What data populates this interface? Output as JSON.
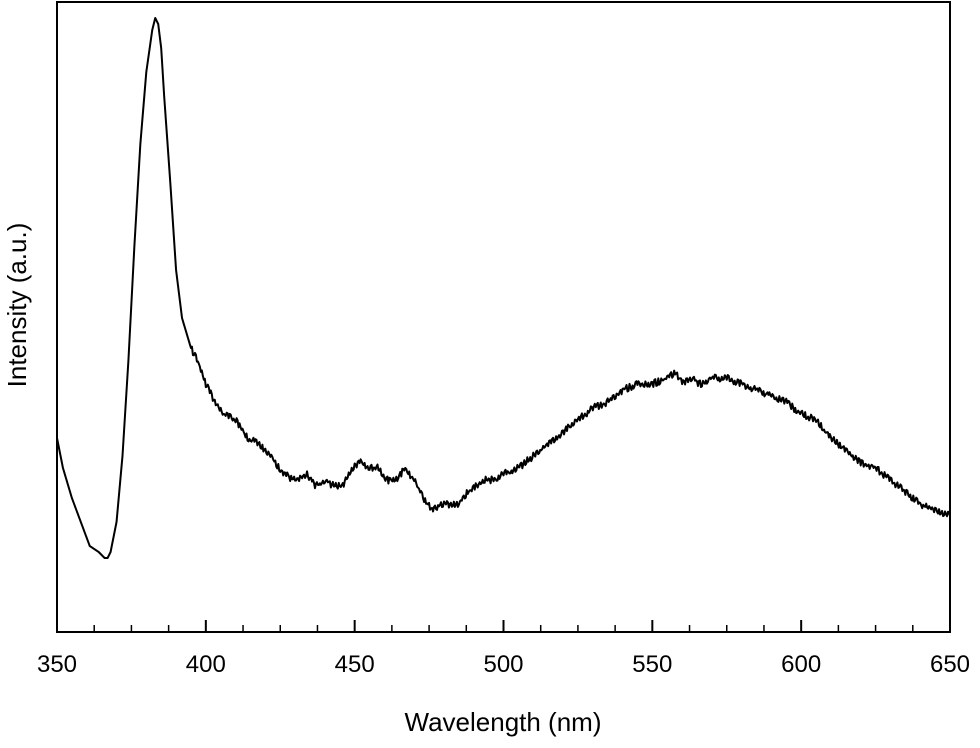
{
  "chart_data": {
    "type": "line",
    "title": "",
    "xlabel": "Wavelength (nm)",
    "ylabel": "Intensity (a.u.)",
    "xlim": [
      350,
      650
    ],
    "ylim": [
      0,
      1.0
    ],
    "x_ticks": [
      "350",
      "400",
      "450",
      "500",
      "550",
      "600",
      "650"
    ],
    "x_tick_values": [
      350,
      400,
      450,
      500,
      550,
      600,
      650
    ],
    "x_minor_step": 12.5,
    "y_tick_labels_shown": false,
    "grid": false,
    "legend": "none",
    "line_color": "#000000",
    "series": [
      {
        "x": [
          350,
          352,
          355,
          358,
          361,
          364,
          366,
          367,
          368,
          370,
          372,
          374,
          376,
          378,
          380,
          382,
          383,
          384,
          385,
          386,
          388,
          390,
          392,
          395,
          398,
          400,
          403,
          406,
          410,
          414,
          418,
          422,
          426,
          430,
          434,
          437,
          440,
          443,
          446,
          449,
          452,
          455,
          458,
          461,
          464,
          467,
          470,
          473,
          476,
          479,
          482,
          485,
          488,
          491,
          494,
          497,
          500,
          505,
          510,
          515,
          520,
          525,
          530,
          535,
          540,
          545,
          550,
          555,
          558,
          560,
          563,
          566,
          570,
          575,
          580,
          585,
          590,
          595,
          600,
          605,
          610,
          615,
          620,
          625,
          630,
          635,
          640,
          645,
          650
        ],
        "y": [
          0.29,
          0.24,
          0.19,
          0.15,
          0.11,
          0.1,
          0.09,
          0.09,
          0.1,
          0.15,
          0.26,
          0.42,
          0.61,
          0.78,
          0.9,
          0.97,
          0.99,
          0.98,
          0.94,
          0.86,
          0.72,
          0.57,
          0.49,
          0.44,
          0.41,
          0.38,
          0.35,
          0.33,
          0.32,
          0.29,
          0.28,
          0.26,
          0.23,
          0.22,
          0.23,
          0.21,
          0.22,
          0.21,
          0.21,
          0.24,
          0.25,
          0.24,
          0.24,
          0.22,
          0.22,
          0.24,
          0.22,
          0.19,
          0.17,
          0.18,
          0.18,
          0.18,
          0.2,
          0.21,
          0.22,
          0.22,
          0.23,
          0.24,
          0.26,
          0.28,
          0.3,
          0.32,
          0.34,
          0.35,
          0.37,
          0.38,
          0.38,
          0.39,
          0.4,
          0.38,
          0.39,
          0.38,
          0.39,
          0.39,
          0.38,
          0.37,
          0.36,
          0.35,
          0.33,
          0.32,
          0.29,
          0.27,
          0.25,
          0.24,
          0.22,
          0.2,
          0.18,
          0.17,
          0.16
        ]
      }
    ]
  }
}
